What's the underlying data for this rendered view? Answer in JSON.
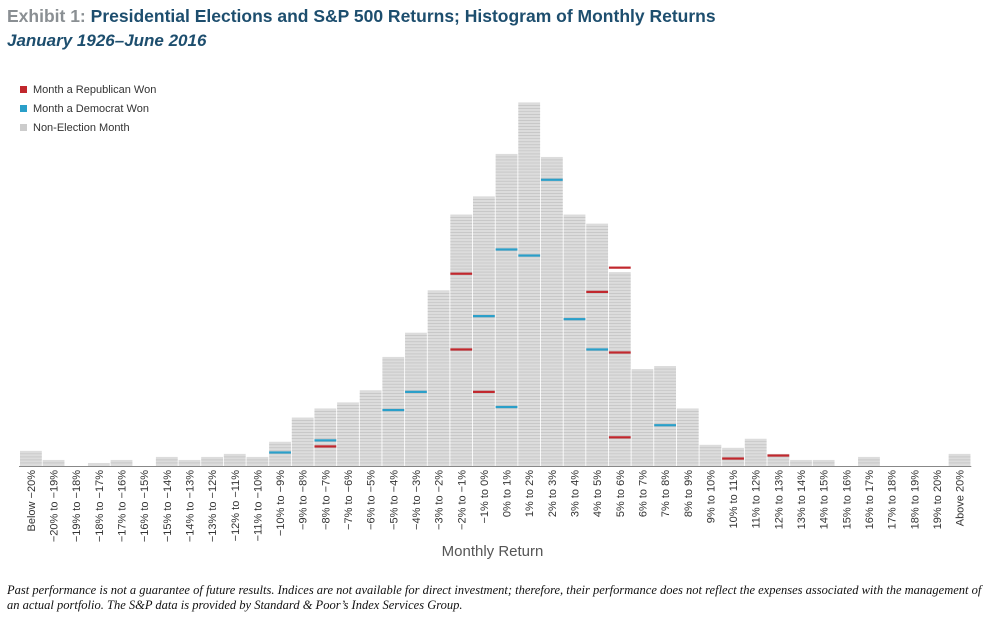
{
  "header": {
    "exhibit": "Exhibit 1:",
    "title": "Presidential Elections and S&P 500 Returns; Histogram of Monthly Returns",
    "subtitle": "January 1926–June 2016"
  },
  "legend": [
    {
      "label": "Month a Republican Won",
      "color": "#c1272d"
    },
    {
      "label": "Month a Democrat Won",
      "color": "#2a9fc9"
    },
    {
      "label": "Non-Election Month",
      "color": "#cccccc"
    }
  ],
  "colors": {
    "republican": "#c1272d",
    "democrat": "#2a9fc9",
    "non_election": "#dcdcdc",
    "unit_separator": "#bdbdbd"
  },
  "chart_data": {
    "type": "bar",
    "xlabel": "Monthly Return",
    "ylabel": "",
    "categories": [
      "Below −20%",
      "−20% to −19%",
      "−19% to −18%",
      "−18% to −17%",
      "−17% to −16%",
      "−16% to −15%",
      "−15% to −14%",
      "−14% to −13%",
      "−13% to −12%",
      "−12% to −11%",
      "−11% to −10%",
      "−10% to −9%",
      "−9% to −8%",
      "−8% to −7%",
      "−7% to −6%",
      "−6% to −5%",
      "−5% to −4%",
      "−4% to −3%",
      "−3% to −2%",
      "−2% to −1%",
      "−1% to 0%",
      "0% to 1%",
      "1% to 2%",
      "2% to 3%",
      "3% to 4%",
      "4% to 5%",
      "5% to 6%",
      "6% to 7%",
      "7% to 8%",
      "8% to 9%",
      "9% to 10%",
      "10% to 11%",
      "11% to 12%",
      "12% to 13%",
      "13% to 14%",
      "14% to 15%",
      "15% to 16%",
      "16% to 17%",
      "17% to 18%",
      "18% to 19%",
      "19% to 20%",
      "Above 20%"
    ],
    "series": [
      {
        "name": "Non-Election Month",
        "values": [
          5,
          2,
          0,
          1,
          2,
          0,
          3,
          2,
          3,
          4,
          3,
          7,
          16,
          17,
          21,
          25,
          35,
          43,
          58,
          81,
          87,
          101,
          118,
          101,
          82,
          78,
          61,
          32,
          32,
          19,
          7,
          5,
          9,
          3,
          2,
          2,
          0,
          3,
          0,
          0,
          0,
          4
        ]
      },
      {
        "name": "Month a Republican Won",
        "values": [
          0,
          0,
          0,
          0,
          0,
          0,
          0,
          0,
          0,
          0,
          0,
          0,
          0,
          1,
          0,
          0,
          0,
          0,
          0,
          2,
          1,
          0,
          0,
          0,
          0,
          1,
          3,
          0,
          0,
          0,
          0,
          1,
          0,
          1,
          0,
          0,
          0,
          0,
          0,
          0,
          0,
          0
        ]
      },
      {
        "name": "Month a Democrat Won",
        "values": [
          0,
          0,
          0,
          0,
          0,
          0,
          0,
          0,
          0,
          0,
          0,
          1,
          0,
          1,
          0,
          0,
          1,
          1,
          0,
          0,
          1,
          2,
          2,
          1,
          1,
          1,
          0,
          0,
          1,
          0,
          0,
          0,
          0,
          0,
          0,
          0,
          0,
          0,
          0,
          0,
          0,
          0
        ]
      }
    ],
    "election_positions": {
      "Month a Republican Won": [
        [
          13,
          6
        ],
        [
          19,
          38
        ],
        [
          19,
          63
        ],
        [
          20,
          24
        ],
        [
          25,
          57
        ],
        [
          26,
          9
        ],
        [
          26,
          37
        ],
        [
          26,
          65
        ],
        [
          31,
          2
        ],
        [
          33,
          3
        ]
      ],
      "Month a Democrat Won": [
        [
          11,
          4
        ],
        [
          13,
          8
        ],
        [
          16,
          18
        ],
        [
          17,
          24
        ],
        [
          20,
          49
        ],
        [
          21,
          19
        ],
        [
          21,
          71
        ],
        [
          22,
          69
        ],
        [
          23,
          94
        ],
        [
          24,
          48
        ],
        [
          25,
          38
        ],
        [
          28,
          13
        ]
      ]
    },
    "legend_position": "top-left",
    "grid": false,
    "ylim": [
      0,
      126
    ]
  },
  "footnote": "Past performance is not a guarantee of future results. Indices are not available for direct investment; therefore, their performance does not reflect the expenses associated with the management of an actual portfolio. The S&P data is provided by Standard & Poor’s Index Services Group."
}
